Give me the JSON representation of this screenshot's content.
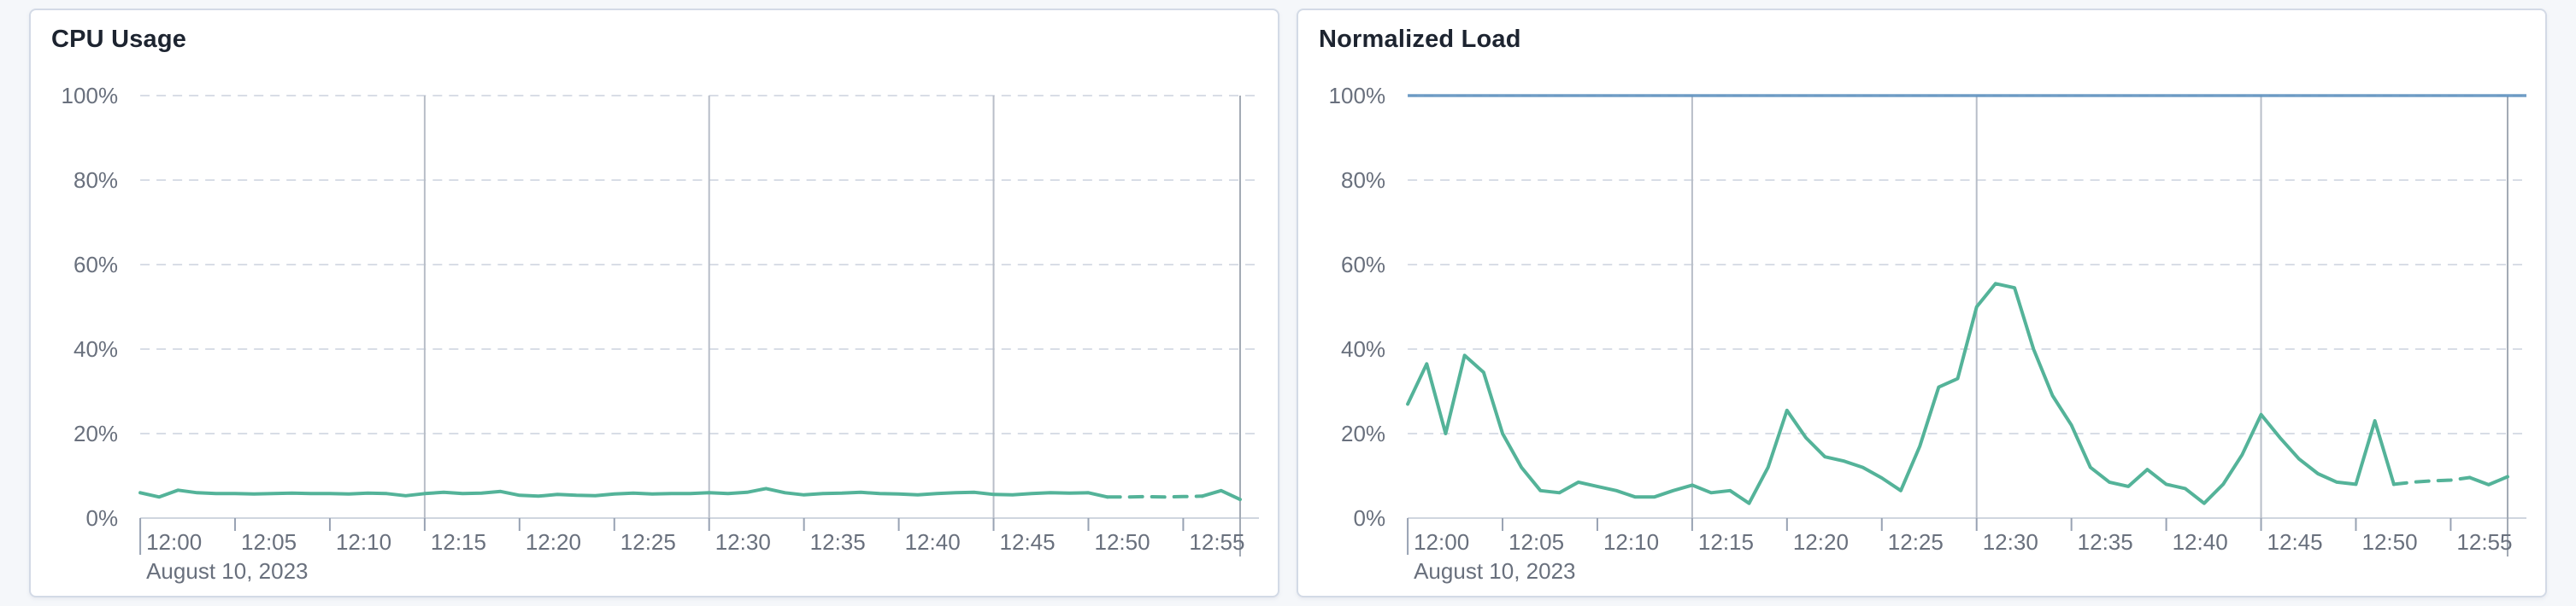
{
  "panels": [
    {
      "title": "CPU Usage"
    },
    {
      "title": "Normalized Load"
    }
  ],
  "colors": {
    "series_green": "#54b399",
    "reference_blue": "#6092c0",
    "grid_dashed": "#d8dde6",
    "grid_vertical": "#b8bec8",
    "grid_edge": "#a2a9b4",
    "axis_line": "#d0d6df",
    "tick": "#98a2b3",
    "axis_text": "#69707d",
    "title_text": "#1d2430",
    "card_border": "#d3dae6",
    "card_bg": "#ffffff",
    "page_bg": "#f5f7fa"
  },
  "chart_data": [
    {
      "type": "line",
      "title": "CPU Usage",
      "ylabel": "",
      "xlabel": "",
      "unit": "%",
      "ylim": [
        0,
        100
      ],
      "y_ticks": [
        0,
        20,
        40,
        60,
        80,
        100
      ],
      "y_tick_labels": [
        "0%",
        "20%",
        "40%",
        "60%",
        "80%",
        "100%"
      ],
      "x_start_minute": 0,
      "x_end_minute": 58,
      "x_tick_minutes": [
        0,
        5,
        10,
        15,
        20,
        25,
        30,
        35,
        40,
        45,
        50,
        55
      ],
      "x_tick_labels": [
        "12:00",
        "12:05",
        "12:10",
        "12:15",
        "12:20",
        "12:25",
        "12:30",
        "12:35",
        "12:40",
        "12:45",
        "12:50",
        "12:55"
      ],
      "x_date_label": "August 10, 2023",
      "vertical_gridline_minutes": [
        15,
        30,
        45
      ],
      "grid": true,
      "legend": "none",
      "series": [
        {
          "name": "cpu-usage",
          "color": "#54b399",
          "dashed_start_index": 51,
          "dashed_end_index": 56,
          "values": [
            6,
            5,
            6.6,
            6,
            5.8,
            5.8,
            5.7,
            5.8,
            5.9,
            5.8,
            5.8,
            5.7,
            5.9,
            5.8,
            5.3,
            5.8,
            6.1,
            5.8,
            5.9,
            6.3,
            5.4,
            5.2,
            5.6,
            5.4,
            5.3,
            5.7,
            5.9,
            5.7,
            5.8,
            5.8,
            6.0,
            5.8,
            6.1,
            7.0,
            6.0,
            5.5,
            5.8,
            5.9,
            6.1,
            5.8,
            5.7,
            5.5,
            5.8,
            6.0,
            6.1,
            5.6,
            5.5,
            5.8,
            6.0,
            5.9,
            6.0,
            5.0,
            5.0,
            5.1,
            5.0,
            5.1,
            5.2,
            6.5,
            4.4
          ]
        }
      ]
    },
    {
      "type": "line",
      "title": "Normalized Load",
      "ylabel": "",
      "xlabel": "",
      "unit": "%",
      "ylim": [
        0,
        100
      ],
      "y_ticks": [
        0,
        20,
        40,
        60,
        80,
        100
      ],
      "y_tick_labels": [
        "0%",
        "20%",
        "40%",
        "60%",
        "80%",
        "100%"
      ],
      "x_start_minute": 0,
      "x_end_minute": 58,
      "x_tick_minutes": [
        0,
        5,
        10,
        15,
        20,
        25,
        30,
        35,
        40,
        45,
        50,
        55
      ],
      "x_tick_labels": [
        "12:00",
        "12:05",
        "12:10",
        "12:15",
        "12:20",
        "12:25",
        "12:30",
        "12:35",
        "12:40",
        "12:45",
        "12:50",
        "12:55"
      ],
      "x_date_label": "August 10, 2023",
      "vertical_gridline_minutes": [
        15,
        30,
        45
      ],
      "grid": true,
      "legend": "none",
      "reference_line": {
        "value": 100,
        "color": "#6092c0"
      },
      "series": [
        {
          "name": "normalized-load",
          "color": "#54b399",
          "dashed_start_index": 52,
          "dashed_end_index": 56,
          "values": [
            27,
            36.5,
            20,
            38.5,
            34.5,
            20,
            12,
            6.5,
            6,
            8.5,
            7.5,
            6.5,
            5,
            5,
            6.5,
            7.8,
            6,
            6.5,
            3.5,
            12,
            25.5,
            19,
            14.5,
            13.5,
            12,
            9.5,
            6.5,
            17,
            31,
            33,
            50,
            55.5,
            54.5,
            40,
            29,
            22,
            12,
            8.5,
            7.5,
            11.5,
            8,
            7,
            3.5,
            8,
            15,
            24.5,
            19,
            14,
            10.5,
            8.5,
            8,
            23,
            8,
            8.5,
            8.8,
            9,
            9.6,
            7.9,
            9.8
          ]
        }
      ]
    }
  ]
}
